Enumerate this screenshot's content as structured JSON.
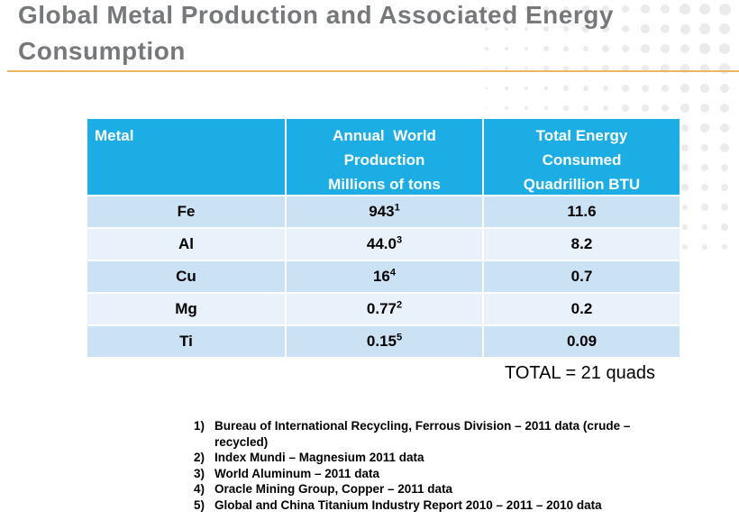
{
  "slide": {
    "title": "Global Metal Production and Associated Energy\nConsumption"
  },
  "table": {
    "headers": {
      "metal": "Metal",
      "production": "Annual  World\nProduction\nMillions of tons",
      "energy": "Total Energy\nConsumed\nQuadrillion BTU"
    },
    "rows": [
      {
        "metal": "Fe",
        "production": "943",
        "production_ref": "1",
        "energy": "11.6"
      },
      {
        "metal": "Al",
        "production": "44.0",
        "production_ref": "3",
        "energy": "8.2"
      },
      {
        "metal": "Cu",
        "production": "16",
        "production_ref": "4",
        "energy": "0.7"
      },
      {
        "metal": "Mg",
        "production": "0.77",
        "production_ref": "2",
        "energy": "0.2"
      },
      {
        "metal": "Ti",
        "production": "0.15",
        "production_ref": "5",
        "energy": "0.09"
      }
    ],
    "total_label": "TOTAL = 21 quads"
  },
  "footnotes": [
    {
      "num": "1)",
      "text": "Bureau of International Recycling, Ferrous Division – 2011 data (crude – recycled)"
    },
    {
      "num": "2)",
      "text": "Index Mundi – Magnesium 2011 data"
    },
    {
      "num": "3)",
      "text": "World Aluminum – 2011 data"
    },
    {
      "num": "4)",
      "text": "Oracle Mining Group, Copper – 2011 data"
    },
    {
      "num": "5)",
      "text": "Global and China Titanium Industry Report 2010 – 2011 – 2010 data"
    }
  ],
  "colors": {
    "header_bg": "#1cade4",
    "row_dark": "#cbe1f4",
    "row_light": "#e9f1fa",
    "title_text": "#77787b",
    "title_underline": "#edb65c",
    "dot_pattern": "#ebebeb"
  },
  "chart_data": {
    "type": "table",
    "title": "Global Metal Production and Associated Energy Consumption",
    "columns": [
      "Metal",
      "Annual World Production Millions of tons",
      "Total Energy Consumed Quadrillion BTU"
    ],
    "rows": [
      [
        "Fe",
        943,
        11.6
      ],
      [
        "Al",
        44.0,
        8.2
      ],
      [
        "Cu",
        16,
        0.7
      ],
      [
        "Mg",
        0.77,
        0.2
      ],
      [
        "Ti",
        0.15,
        0.09
      ]
    ],
    "total_energy_quads": 21,
    "footnote_refs": {
      "Fe": 1,
      "Al": 3,
      "Cu": 4,
      "Mg": 2,
      "Ti": 5
    }
  }
}
